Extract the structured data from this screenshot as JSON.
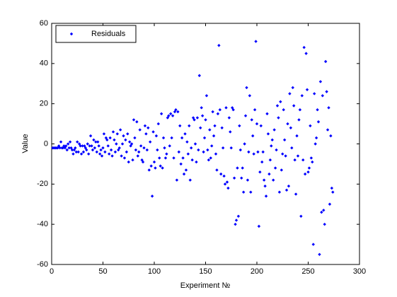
{
  "chart_data": {
    "type": "scatter",
    "xlabel": "Experiment №",
    "ylabel": "Value",
    "xlim": [
      0,
      300
    ],
    "ylim": [
      -60,
      60
    ],
    "xticks": [
      0,
      50,
      100,
      150,
      200,
      250,
      300
    ],
    "yticks": [
      -60,
      -40,
      -20,
      0,
      20,
      40,
      60
    ],
    "legend": "top-left",
    "series": [
      {
        "name": "Residuals",
        "color": "#0000ff",
        "x": [
          1,
          2,
          3,
          4,
          5,
          6,
          7,
          8,
          9,
          10,
          11,
          12,
          13,
          14,
          15,
          16,
          17,
          18,
          19,
          20,
          21,
          22,
          23,
          24,
          25,
          26,
          27,
          28,
          29,
          30,
          31,
          32,
          33,
          34,
          35,
          36,
          37,
          38,
          39,
          40,
          41,
          42,
          43,
          44,
          45,
          46,
          47,
          48,
          49,
          50,
          51,
          52,
          53,
          54,
          55,
          56,
          57,
          58,
          59,
          60,
          61,
          62,
          63,
          64,
          65,
          66,
          67,
          68,
          69,
          70,
          71,
          72,
          73,
          74,
          75,
          76,
          77,
          78,
          79,
          80,
          81,
          82,
          83,
          84,
          85,
          86,
          87,
          88,
          89,
          90,
          91,
          92,
          93,
          94,
          95,
          96,
          97,
          98,
          99,
          100,
          101,
          102,
          103,
          104,
          105,
          106,
          107,
          108,
          109,
          110,
          111,
          112,
          113,
          114,
          115,
          116,
          117,
          118,
          119,
          120,
          121,
          122,
          123,
          124,
          125,
          126,
          127,
          128,
          129,
          130,
          131,
          132,
          133,
          134,
          135,
          136,
          137,
          138,
          139,
          140,
          141,
          142,
          143,
          144,
          145,
          146,
          147,
          148,
          149,
          150,
          151,
          152,
          153,
          154,
          155,
          156,
          157,
          158,
          159,
          160,
          161,
          162,
          163,
          164,
          165,
          166,
          167,
          168,
          169,
          170,
          171,
          172,
          173,
          174,
          175,
          176,
          177,
          178,
          179,
          180,
          181,
          182,
          183,
          184,
          185,
          186,
          187,
          188,
          189,
          190,
          191,
          192,
          193,
          194,
          195,
          196,
          197,
          198,
          199,
          200,
          201,
          202,
          203,
          204,
          205,
          206,
          207,
          208,
          209,
          210,
          211,
          212,
          213,
          214,
          215,
          216,
          217,
          218,
          219,
          220,
          221,
          222,
          223,
          224,
          225,
          226,
          227,
          228,
          229,
          230,
          231,
          232,
          233,
          234,
          235,
          236,
          237,
          238,
          239,
          240,
          241,
          242,
          243,
          244,
          245,
          246,
          247,
          248,
          249,
          250,
          251,
          252,
          253,
          254,
          255,
          256,
          257,
          258,
          259,
          260,
          261,
          262,
          263,
          264,
          265,
          266,
          267,
          268,
          269,
          270,
          271,
          272,
          273,
          274
        ],
        "values": [
          -2,
          -2,
          -2,
          -2,
          -2,
          -2,
          -1,
          -2,
          1,
          -2,
          -2,
          -1,
          -2,
          -1,
          -3,
          0,
          -2,
          1,
          -2,
          -3,
          -5,
          -3,
          -2,
          -4,
          1,
          -4,
          0,
          -1,
          -5,
          -1,
          -4,
          -1,
          -2,
          -3,
          0,
          -5,
          -1,
          4,
          -1,
          -3,
          2,
          -2,
          1,
          -4,
          1,
          -1,
          -5,
          -3,
          -6,
          -2,
          5,
          -4,
          3,
          2,
          -1,
          -5,
          3,
          -3,
          -6,
          6,
          2,
          -4,
          0,
          5,
          -3,
          -2,
          7,
          -6,
          0,
          4,
          -7,
          2,
          -4,
          5,
          -9,
          1,
          -1,
          0,
          -8,
          12,
          3,
          -3,
          11,
          -6,
          -4,
          7,
          -1,
          -8,
          -9,
          -2,
          9,
          5,
          -3,
          8,
          -13,
          1,
          -11,
          -26,
          6,
          -9,
          -12,
          4,
          -3,
          10,
          -7,
          -11,
          15,
          -12,
          3,
          -2,
          -7,
          -5,
          13,
          14,
          -1,
          15,
          3,
          14,
          -7,
          16,
          17,
          -18,
          16,
          -4,
          9,
          -10,
          3,
          -7,
          -15,
          5,
          -13,
          1,
          -5,
          9,
          -18,
          -2,
          -8,
          13,
          12,
          0,
          -9,
          13,
          -3,
          34,
          8,
          18,
          14,
          -4,
          3,
          12,
          24,
          -3,
          -8,
          7,
          -7,
          -1,
          16,
          4,
          9,
          -5,
          -13,
          15,
          49,
          17,
          -15,
          8,
          -2,
          -16,
          -20,
          18,
          -19,
          -22,
          13,
          6,
          -2,
          18,
          17,
          -17,
          -40,
          -38,
          -12,
          -36,
          9,
          -3,
          -17,
          -12,
          -24,
          0,
          14,
          28,
          -18,
          -4,
          24,
          -24,
          12,
          4,
          -5,
          17,
          51,
          10,
          -4,
          -41,
          -14,
          9,
          -9,
          -4,
          -18,
          -21,
          -26,
          15,
          5,
          -15,
          -8,
          -1,
          2,
          -18,
          7,
          -12,
          -3,
          19,
          13,
          -24,
          21,
          -13,
          -5,
          17,
          2,
          -6,
          -23,
          10,
          -21,
          25,
          8,
          -2,
          28,
          19,
          -8,
          -25,
          4,
          -6,
          12,
          17,
          -36,
          24,
          -8,
          48,
          -15,
          45,
          27,
          -14,
          -12,
          9,
          -7,
          -9,
          -50,
          25,
          0,
          3,
          17,
          11,
          -55,
          31,
          -34,
          24,
          -33,
          -40,
          41,
          26,
          7,
          18,
          -30,
          4,
          -22,
          -24
        ]
      }
    ]
  }
}
